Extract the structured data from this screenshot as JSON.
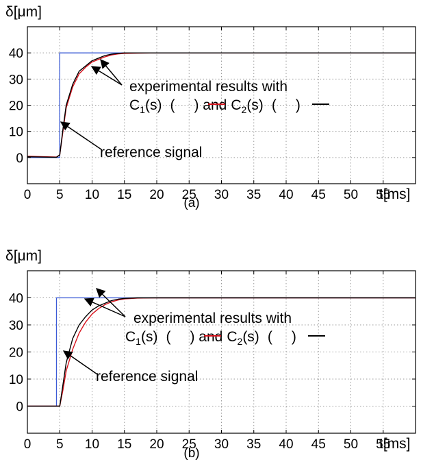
{
  "charts": [
    {
      "ylabel_delta": "δ",
      "ylabel_unit": "[μm]",
      "xlabel": "t[ms]",
      "caption": "(a)",
      "annotation": {
        "line1": "experimental results with",
        "c1": "C",
        "c1_sub": "1",
        "c1_args": "(s)",
        "open_paren_1": "(",
        "close_and": ") and",
        "c2": "C",
        "c2_sub": "2",
        "c2_args": "(s)",
        "open_paren_2": "(",
        "close_paren_2": ")",
        "reference": "reference signal"
      }
    },
    {
      "ylabel_delta": "δ",
      "ylabel_unit": "[μm]",
      "xlabel": "t[ms]",
      "caption": "(b)",
      "annotation": {
        "line1": "experimental results with",
        "c1": "C",
        "c1_sub": "1",
        "c1_args": "(s)",
        "open_paren_1": "(",
        "close_and": ") and",
        "c2": "C",
        "c2_sub": "2",
        "c2_args": "(s)",
        "open_paren_2": "(",
        "close_paren_2": ")",
        "reference": "reference signal"
      }
    }
  ],
  "colors": {
    "reference": "#3b5bd6",
    "c1": "#d8141e",
    "c2": "#000000",
    "grid": "#9a9a9a"
  },
  "chart_data": [
    {
      "type": "line",
      "caption": "(a)",
      "xlabel": "t[ms]",
      "ylabel": "δ[μm]",
      "xlim": [
        0,
        60
      ],
      "ylim": [
        -10,
        50
      ],
      "xticks": [
        0,
        5,
        10,
        15,
        20,
        25,
        30,
        35,
        40,
        45,
        50,
        55
      ],
      "yticks": [
        0,
        10,
        20,
        30,
        40
      ],
      "grid": true,
      "series": [
        {
          "name": "reference signal",
          "color": "#3b5bd6",
          "x": [
            0,
            5,
            5,
            60
          ],
          "y": [
            0,
            0,
            40,
            40
          ]
        },
        {
          "name": "C1(s)",
          "color": "#d8141e",
          "x": [
            0,
            4.5,
            5,
            5.5,
            6,
            7,
            8,
            9,
            10,
            11,
            12,
            13,
            14,
            15,
            17,
            20,
            25,
            30,
            40,
            50,
            60
          ],
          "y": [
            0.5,
            0.2,
            1,
            10,
            19,
            27,
            32,
            34.5,
            36.5,
            37.5,
            38.5,
            39.2,
            39.6,
            39.8,
            39.9,
            40,
            40,
            40,
            40,
            40,
            40
          ]
        },
        {
          "name": "C2(s)",
          "color": "#000000",
          "x": [
            0,
            4.5,
            5,
            5.5,
            6,
            7,
            8,
            9,
            10,
            11,
            12,
            13,
            14,
            15,
            17,
            20,
            25,
            30,
            40,
            50,
            60
          ],
          "y": [
            0.3,
            0.1,
            1,
            11,
            20,
            28,
            33,
            35,
            37,
            38,
            39,
            39.5,
            39.8,
            40,
            40,
            40,
            40,
            40,
            40,
            40,
            40
          ]
        }
      ]
    },
    {
      "type": "line",
      "caption": "(b)",
      "xlabel": "t[ms]",
      "ylabel": "δ[μm]",
      "xlim": [
        0,
        60
      ],
      "ylim": [
        -10,
        50
      ],
      "xticks": [
        0,
        5,
        10,
        15,
        20,
        25,
        30,
        35,
        40,
        45,
        50,
        55
      ],
      "yticks": [
        0,
        10,
        20,
        30,
        40
      ],
      "grid": true,
      "series": [
        {
          "name": "reference signal",
          "color": "#3b5bd6",
          "x": [
            0,
            4.5,
            4.5,
            60
          ],
          "y": [
            0,
            0,
            40,
            40
          ]
        },
        {
          "name": "C1(s)",
          "color": "#d8141e",
          "x": [
            0,
            5,
            5.5,
            6,
            7,
            8,
            9,
            10,
            11,
            12,
            13,
            14,
            15,
            17,
            20,
            25,
            30,
            40,
            50,
            60
          ],
          "y": [
            0,
            0,
            6,
            13,
            21,
            27,
            31,
            34,
            36,
            37.5,
            38.5,
            39.2,
            39.6,
            39.9,
            40,
            40,
            40,
            40,
            40,
            40
          ]
        },
        {
          "name": "C2(s)",
          "color": "#000000",
          "x": [
            0,
            5,
            5.5,
            6,
            7,
            8,
            9,
            10,
            11,
            12,
            13,
            14,
            15,
            17,
            20,
            25,
            30,
            40,
            50,
            60
          ],
          "y": [
            0,
            0,
            8,
            16,
            25,
            30,
            33,
            35.5,
            37,
            38,
            39,
            39.5,
            39.8,
            40,
            40,
            40,
            40,
            40,
            40,
            40
          ]
        }
      ]
    }
  ]
}
